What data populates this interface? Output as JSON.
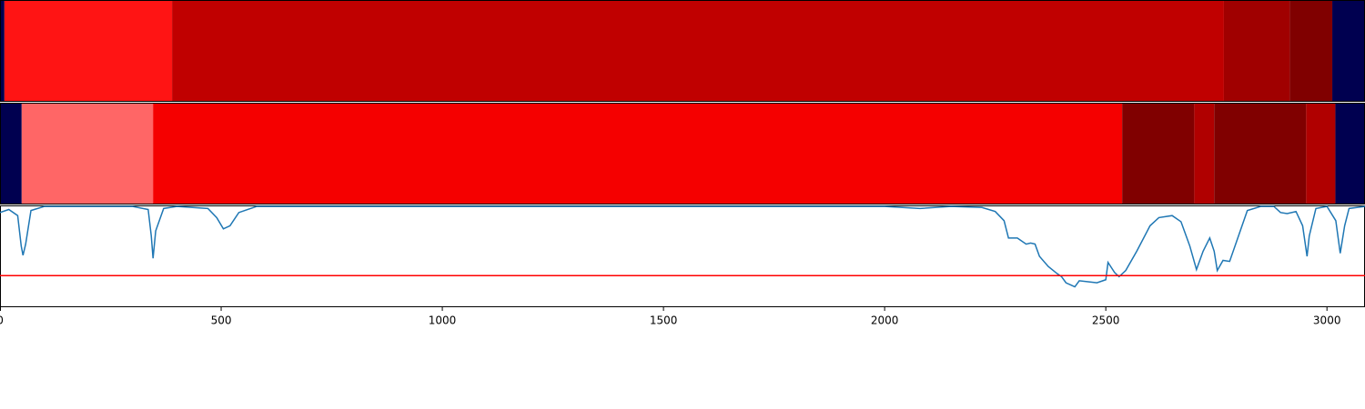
{
  "chart_data": [
    {
      "type": "segments",
      "xlim": [
        0,
        3086
      ],
      "segments": [
        {
          "start": 0,
          "end": 10,
          "color": "#000050"
        },
        {
          "start": 10,
          "end": 389,
          "color": "#ff1414"
        },
        {
          "start": 389,
          "end": 2767,
          "color": "#c00000"
        },
        {
          "start": 2767,
          "end": 2916,
          "color": "#a00000"
        },
        {
          "start": 2916,
          "end": 3012,
          "color": "#800000"
        },
        {
          "start": 3012,
          "end": 3086,
          "color": "#000050"
        }
      ]
    },
    {
      "type": "segments",
      "xlim": [
        0,
        3086
      ],
      "segments": [
        {
          "start": 0,
          "end": 49,
          "color": "#000050"
        },
        {
          "start": 49,
          "end": 346,
          "color": "#ff6666"
        },
        {
          "start": 346,
          "end": 2537,
          "color": "#f50000"
        },
        {
          "start": 2537,
          "end": 2700,
          "color": "#800000"
        },
        {
          "start": 2700,
          "end": 2745,
          "color": "#b00000"
        },
        {
          "start": 2745,
          "end": 2953,
          "color": "#800000"
        },
        {
          "start": 2953,
          "end": 3019,
          "color": "#b00000"
        },
        {
          "start": 3019,
          "end": 3086,
          "color": "#000050"
        }
      ]
    },
    {
      "type": "line",
      "xlim": [
        0,
        3086
      ],
      "ylim": [
        0,
        1
      ],
      "xticks": [
        0,
        500,
        1000,
        1500,
        2000,
        2500,
        3000
      ],
      "color": "#1f77b4",
      "threshold": 0.31,
      "threshold_color": "#ff0000",
      "x": [
        0,
        20,
        40,
        48,
        52,
        58,
        70,
        100,
        300,
        335,
        342,
        346,
        352,
        370,
        400,
        470,
        490,
        505,
        520,
        540,
        580,
        1900,
        2000,
        2080,
        2150,
        2220,
        2250,
        2270,
        2280,
        2300,
        2310,
        2320,
        2330,
        2340,
        2350,
        2370,
        2390,
        2400,
        2410,
        2430,
        2440,
        2460,
        2480,
        2500,
        2505,
        2520,
        2530,
        2545,
        2570,
        2600,
        2620,
        2650,
        2670,
        2690,
        2705,
        2720,
        2735,
        2745,
        2752,
        2765,
        2780,
        2800,
        2820,
        2850,
        2880,
        2895,
        2910,
        2930,
        2945,
        2955,
        2960,
        2975,
        3000,
        3020,
        3030,
        3040,
        3050,
        3086
      ],
      "values": [
        0.93,
        0.96,
        0.9,
        0.6,
        0.51,
        0.62,
        0.95,
        0.99,
        0.99,
        0.96,
        0.7,
        0.48,
        0.75,
        0.97,
        0.99,
        0.97,
        0.88,
        0.77,
        0.8,
        0.93,
        0.99,
        0.99,
        0.99,
        0.97,
        0.99,
        0.98,
        0.94,
        0.85,
        0.68,
        0.68,
        0.65,
        0.62,
        0.63,
        0.62,
        0.5,
        0.4,
        0.33,
        0.3,
        0.24,
        0.2,
        0.26,
        0.25,
        0.24,
        0.27,
        0.44,
        0.34,
        0.3,
        0.36,
        0.55,
        0.8,
        0.88,
        0.9,
        0.84,
        0.6,
        0.37,
        0.55,
        0.68,
        0.55,
        0.36,
        0.46,
        0.45,
        0.7,
        0.95,
        0.99,
        0.99,
        0.93,
        0.92,
        0.94,
        0.8,
        0.5,
        0.7,
        0.97,
        0.99,
        0.85,
        0.53,
        0.8,
        0.97,
        0.99
      ]
    }
  ]
}
